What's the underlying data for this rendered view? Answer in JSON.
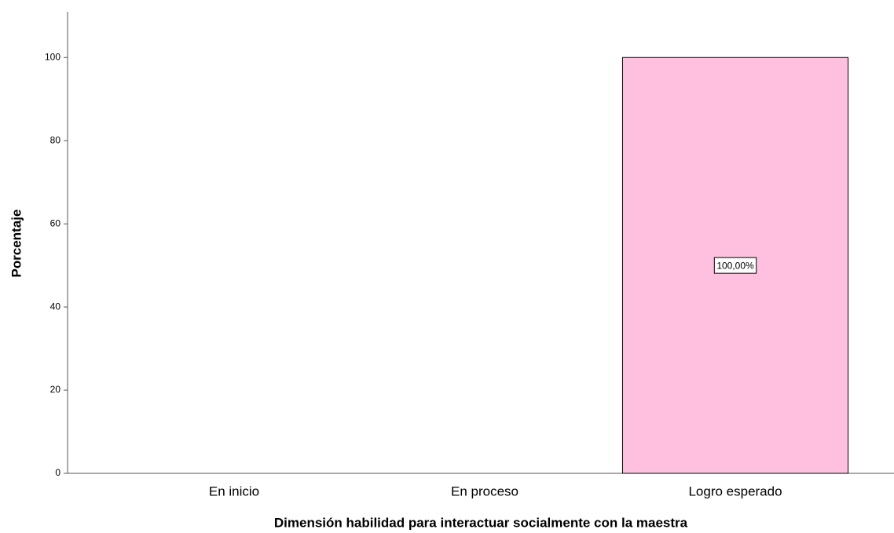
{
  "chart_data": {
    "type": "bar",
    "x_label": "Dimensión habilidad para interactuar socialmente con la maestra",
    "y_label": "Porcentaje",
    "categories": [
      "En inicio",
      "En proceso",
      "Logro esperado"
    ],
    "values": [
      0,
      0,
      100
    ],
    "value_labels": [
      null,
      null,
      "100,00%"
    ],
    "color": "#ffc0e0",
    "ylim": [
      0,
      111
    ],
    "yticks": [
      0,
      20,
      40,
      60,
      80,
      100
    ],
    "grid": false
  }
}
